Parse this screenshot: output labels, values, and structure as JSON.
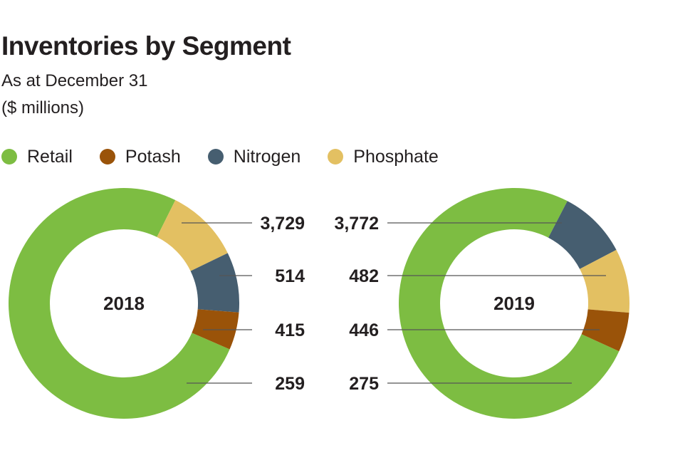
{
  "chart_data": {
    "type": "pie",
    "title": "Inventories by Segment",
    "subtitle": "As at December 31",
    "unit": "($ millions)",
    "legend": [
      {
        "name": "Retail",
        "color": "#7dbd42"
      },
      {
        "name": "Potash",
        "color": "#9a5309"
      },
      {
        "name": "Nitrogen",
        "color": "#465e70"
      },
      {
        "name": "Phosphate",
        "color": "#e3c062"
      }
    ],
    "charts": [
      {
        "year": "2018",
        "slices": [
          {
            "name": "Retail",
            "value": 3729,
            "label": "3,729",
            "color": "#7dbd42"
          },
          {
            "name": "Phosphate",
            "value": 514,
            "label": "514",
            "color": "#e3c062"
          },
          {
            "name": "Nitrogen",
            "value": 415,
            "label": "415",
            "color": "#465e70"
          },
          {
            "name": "Potash",
            "value": 259,
            "label": "259",
            "color": "#9a5309"
          }
        ]
      },
      {
        "year": "2019",
        "slices": [
          {
            "name": "Retail",
            "value": 3772,
            "label": "3,772",
            "color": "#7dbd42"
          },
          {
            "name": "Nitrogen",
            "value": 482,
            "label": "482",
            "color": "#465e70"
          },
          {
            "name": "Phosphate",
            "value": 446,
            "label": "446",
            "color": "#e3c062"
          },
          {
            "name": "Potash",
            "value": 275,
            "label": "275",
            "color": "#9a5309"
          }
        ]
      }
    ]
  }
}
